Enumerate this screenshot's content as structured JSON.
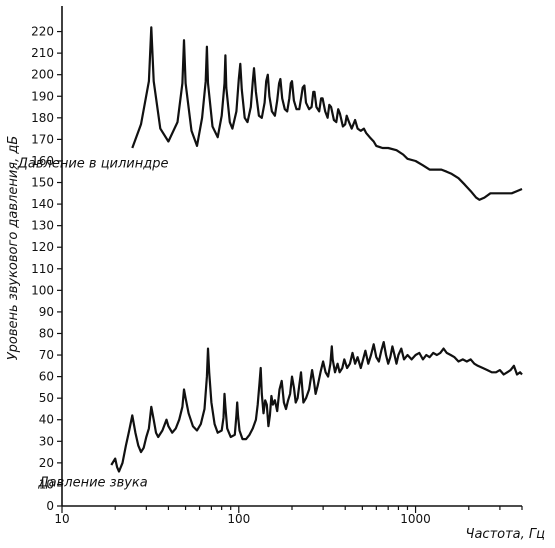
{
  "chart_data": {
    "type": "line",
    "title": "",
    "xlabel": "Частота, Гц",
    "ylabel": "Уровень звукового давления, дБ",
    "x_scale": "log",
    "xlim": [
      10,
      4000
    ],
    "ylim": [
      0,
      230
    ],
    "x_ticks": [
      {
        "value": 10,
        "label": "10"
      },
      {
        "value": 100,
        "label": "100"
      },
      {
        "value": 1000,
        "label": "1000"
      }
    ],
    "y_ticks": [
      {
        "value": 0,
        "label": "0"
      },
      {
        "value": 10,
        "label": "10"
      },
      {
        "value": 20,
        "label": "20"
      },
      {
        "value": 30,
        "label": "30"
      },
      {
        "value": 40,
        "label": "40"
      },
      {
        "value": 50,
        "label": "50"
      },
      {
        "value": 60,
        "label": "60"
      },
      {
        "value": 70,
        "label": "70"
      },
      {
        "value": 80,
        "label": "80"
      },
      {
        "value": 90,
        "label": "90"
      },
      {
        "value": 100,
        "label": "100"
      },
      {
        "value": 110,
        "label": "110"
      },
      {
        "value": 120,
        "label": "120"
      },
      {
        "value": 130,
        "label": "130"
      },
      {
        "value": 140,
        "label": "140"
      },
      {
        "value": 150,
        "label": "150"
      },
      {
        "value": 160,
        "label": "160"
      },
      {
        "value": 170,
        "label": "170"
      },
      {
        "value": 180,
        "label": "180"
      },
      {
        "value": 190,
        "label": "190"
      },
      {
        "value": 200,
        "label": "200"
      },
      {
        "value": 210,
        "label": "210"
      },
      {
        "value": 220,
        "label": "220"
      }
    ],
    "grid": false,
    "legend": "none",
    "series": [
      {
        "name": "Давление в цилиндре",
        "label_anchor": {
          "x": 15,
          "y": 157
        },
        "points": [
          [
            25,
            166
          ],
          [
            28,
            177
          ],
          [
            31,
            197
          ],
          [
            32,
            222
          ],
          [
            33,
            197
          ],
          [
            36,
            175
          ],
          [
            40,
            169
          ],
          [
            45,
            178
          ],
          [
            48,
            196
          ],
          [
            49,
            216
          ],
          [
            50,
            196
          ],
          [
            54,
            174
          ],
          [
            58,
            167
          ],
          [
            62,
            180
          ],
          [
            65,
            197
          ],
          [
            66,
            213
          ],
          [
            67,
            196
          ],
          [
            71,
            176
          ],
          [
            76,
            171
          ],
          [
            80,
            181
          ],
          [
            83,
            196
          ],
          [
            84,
            209
          ],
          [
            85,
            194
          ],
          [
            89,
            178
          ],
          [
            92,
            175
          ],
          [
            97,
            183
          ],
          [
            100,
            198
          ],
          [
            102,
            205
          ],
          [
            104,
            193
          ],
          [
            108,
            180
          ],
          [
            112,
            178
          ],
          [
            117,
            185
          ],
          [
            120,
            197
          ],
          [
            122,
            203
          ],
          [
            125,
            192
          ],
          [
            130,
            181
          ],
          [
            135,
            180
          ],
          [
            140,
            187
          ],
          [
            143,
            197
          ],
          [
            146,
            200
          ],
          [
            149,
            190
          ],
          [
            154,
            183
          ],
          [
            160,
            181
          ],
          [
            165,
            188
          ],
          [
            169,
            196
          ],
          [
            172,
            198
          ],
          [
            176,
            189
          ],
          [
            182,
            184
          ],
          [
            188,
            183
          ],
          [
            193,
            189
          ],
          [
            197,
            196
          ],
          [
            200,
            197
          ],
          [
            205,
            188
          ],
          [
            212,
            184
          ],
          [
            220,
            184
          ],
          [
            226,
            190
          ],
          [
            230,
            194
          ],
          [
            235,
            195
          ],
          [
            240,
            187
          ],
          [
            250,
            184
          ],
          [
            258,
            185
          ],
          [
            264,
            192
          ],
          [
            268,
            192
          ],
          [
            275,
            185
          ],
          [
            285,
            183
          ],
          [
            292,
            189
          ],
          [
            298,
            189
          ],
          [
            308,
            183
          ],
          [
            318,
            180
          ],
          [
            325,
            186
          ],
          [
            333,
            185
          ],
          [
            345,
            179
          ],
          [
            356,
            178
          ],
          [
            365,
            184
          ],
          [
            373,
            182
          ],
          [
            388,
            176
          ],
          [
            400,
            177
          ],
          [
            408,
            181
          ],
          [
            420,
            178
          ],
          [
            435,
            175
          ],
          [
            445,
            177
          ],
          [
            455,
            179
          ],
          [
            470,
            175
          ],
          [
            490,
            174
          ],
          [
            510,
            175
          ],
          [
            525,
            173
          ],
          [
            550,
            171
          ],
          [
            580,
            169
          ],
          [
            600,
            167
          ],
          [
            650,
            166
          ],
          [
            700,
            166
          ],
          [
            780,
            165
          ],
          [
            850,
            163
          ],
          [
            900,
            161
          ],
          [
            1000,
            160
          ],
          [
            1100,
            158
          ],
          [
            1200,
            156
          ],
          [
            1300,
            156
          ],
          [
            1400,
            156
          ],
          [
            1500,
            155
          ],
          [
            1600,
            154
          ],
          [
            1750,
            152
          ],
          [
            1900,
            149
          ],
          [
            2050,
            146
          ],
          [
            2200,
            143
          ],
          [
            2300,
            142
          ],
          [
            2450,
            143
          ],
          [
            2650,
            145
          ],
          [
            2900,
            145
          ],
          [
            3200,
            145
          ],
          [
            3500,
            145
          ],
          [
            3750,
            146
          ],
          [
            4000,
            147
          ]
        ]
      },
      {
        "name": "Давление звука",
        "label_anchor": {
          "x": 15,
          "y": 9
        },
        "points": [
          [
            19,
            19
          ],
          [
            20,
            22
          ],
          [
            20.5,
            18
          ],
          [
            21,
            16
          ],
          [
            22,
            20
          ],
          [
            23,
            28
          ],
          [
            24,
            35
          ],
          [
            25,
            42
          ],
          [
            26,
            34
          ],
          [
            27,
            28
          ],
          [
            28,
            25
          ],
          [
            29,
            27
          ],
          [
            30,
            32
          ],
          [
            31,
            36
          ],
          [
            32,
            46
          ],
          [
            33,
            40
          ],
          [
            34,
            34
          ],
          [
            35,
            32
          ],
          [
            37,
            35
          ],
          [
            39,
            40
          ],
          [
            40,
            37
          ],
          [
            42,
            34
          ],
          [
            44,
            36
          ],
          [
            46,
            40
          ],
          [
            48,
            46
          ],
          [
            49,
            54
          ],
          [
            50,
            50
          ],
          [
            52,
            43
          ],
          [
            55,
            37
          ],
          [
            58,
            35
          ],
          [
            61,
            38
          ],
          [
            64,
            45
          ],
          [
            66,
            60
          ],
          [
            67,
            73
          ],
          [
            68,
            62
          ],
          [
            70,
            48
          ],
          [
            73,
            38
          ],
          [
            76,
            34
          ],
          [
            80,
            35
          ],
          [
            82,
            41
          ],
          [
            83,
            52
          ],
          [
            84,
            46
          ],
          [
            86,
            36
          ],
          [
            90,
            32
          ],
          [
            95,
            33
          ],
          [
            97,
            42
          ],
          [
            98,
            48
          ],
          [
            99,
            42
          ],
          [
            101,
            35
          ],
          [
            105,
            31
          ],
          [
            110,
            31
          ],
          [
            115,
            33
          ],
          [
            120,
            36
          ],
          [
            125,
            40
          ],
          [
            128,
            47
          ],
          [
            131,
            57
          ],
          [
            133,
            64
          ],
          [
            135,
            52
          ],
          [
            138,
            43
          ],
          [
            141,
            49
          ],
          [
            144,
            47
          ],
          [
            147,
            37
          ],
          [
            150,
            42
          ],
          [
            153,
            51
          ],
          [
            156,
            47
          ],
          [
            160,
            49
          ],
          [
            165,
            44
          ],
          [
            170,
            54
          ],
          [
            175,
            58
          ],
          [
            180,
            48
          ],
          [
            185,
            45
          ],
          [
            190,
            49
          ],
          [
            195,
            52
          ],
          [
            200,
            60
          ],
          [
            205,
            55
          ],
          [
            210,
            48
          ],
          [
            215,
            50
          ],
          [
            220,
            56
          ],
          [
            225,
            62
          ],
          [
            232,
            48
          ],
          [
            240,
            50
          ],
          [
            250,
            54
          ],
          [
            260,
            63
          ],
          [
            266,
            58
          ],
          [
            272,
            52
          ],
          [
            280,
            56
          ],
          [
            290,
            62
          ],
          [
            300,
            67
          ],
          [
            310,
            62
          ],
          [
            320,
            60
          ],
          [
            330,
            66
          ],
          [
            336,
            74
          ],
          [
            340,
            68
          ],
          [
            350,
            62
          ],
          [
            362,
            66
          ],
          [
            372,
            62
          ],
          [
            385,
            64
          ],
          [
            395,
            68
          ],
          [
            410,
            64
          ],
          [
            425,
            66
          ],
          [
            440,
            71
          ],
          [
            455,
            66
          ],
          [
            470,
            69
          ],
          [
            490,
            64
          ],
          [
            505,
            68
          ],
          [
            520,
            72
          ],
          [
            540,
            66
          ],
          [
            560,
            70
          ],
          [
            580,
            75
          ],
          [
            600,
            69
          ],
          [
            620,
            67
          ],
          [
            640,
            72
          ],
          [
            660,
            76
          ],
          [
            680,
            70
          ],
          [
            700,
            66
          ],
          [
            720,
            69
          ],
          [
            740,
            74
          ],
          [
            760,
            70
          ],
          [
            780,
            66
          ],
          [
            800,
            70
          ],
          [
            830,
            73
          ],
          [
            860,
            68
          ],
          [
            900,
            70
          ],
          [
            950,
            68
          ],
          [
            1000,
            70
          ],
          [
            1050,
            71
          ],
          [
            1100,
            68
          ],
          [
            1150,
            70
          ],
          [
            1200,
            69
          ],
          [
            1260,
            71
          ],
          [
            1320,
            70
          ],
          [
            1380,
            71
          ],
          [
            1440,
            73
          ],
          [
            1500,
            71
          ],
          [
            1580,
            70
          ],
          [
            1660,
            69
          ],
          [
            1750,
            67
          ],
          [
            1850,
            68
          ],
          [
            1950,
            67
          ],
          [
            2050,
            68
          ],
          [
            2150,
            66
          ],
          [
            2250,
            65
          ],
          [
            2400,
            64
          ],
          [
            2550,
            63
          ],
          [
            2700,
            62
          ],
          [
            2850,
            62
          ],
          [
            3000,
            63
          ],
          [
            3150,
            61
          ],
          [
            3300,
            62
          ],
          [
            3450,
            63
          ],
          [
            3600,
            65
          ],
          [
            3750,
            61
          ],
          [
            3900,
            62
          ],
          [
            4000,
            61
          ]
        ]
      }
    ]
  }
}
